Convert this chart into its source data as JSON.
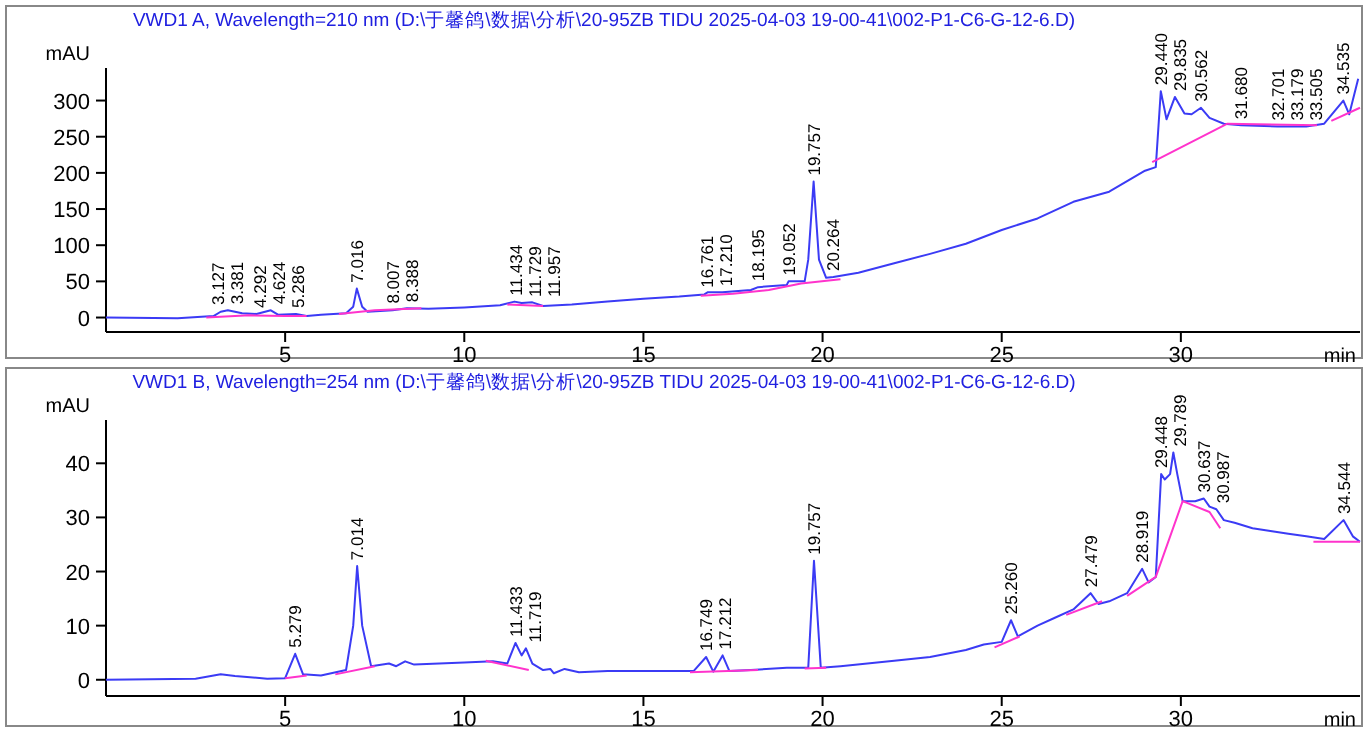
{
  "chart_data": [
    {
      "type": "line",
      "title": "VWD1 A, Wavelength=210 nm (D:\\于馨鸽\\数据\\分析\\20-95ZB TIDU 2025-04-03 19-00-41\\002-P1-C6-G-12-6.D)",
      "ylabel": "mAU",
      "xlabel": "min",
      "xlim": [
        0,
        35
      ],
      "ylim": [
        -20,
        345
      ],
      "xticks": [
        5,
        10,
        15,
        20,
        25,
        30
      ],
      "yticks": [
        0,
        50,
        100,
        150,
        200,
        250,
        300
      ],
      "grid": false,
      "series": [
        {
          "color": "#3b3bf5",
          "x": [
            0,
            2,
            3.0,
            3.2,
            3.4,
            3.8,
            4.2,
            4.6,
            4.8,
            5.3,
            5.6,
            6,
            6.7,
            6.9,
            7.0,
            7.15,
            7.3,
            8,
            8.4,
            9,
            10,
            11,
            11.4,
            11.6,
            11.9,
            12.2,
            13,
            14,
            15,
            16,
            16.7,
            16.8,
            17.2,
            18,
            18.2,
            19,
            19.05,
            19.5,
            19.6,
            19.75,
            19.9,
            20.1,
            20.3,
            21,
            22,
            23,
            24,
            25,
            26,
            27,
            28,
            29,
            29.3,
            29.44,
            29.6,
            29.835,
            30.1,
            30.3,
            30.562,
            30.8,
            31.2,
            31.68,
            32.7,
            33.5,
            34.0,
            34.535,
            34.7,
            34.95
          ],
          "values": [
            0,
            -1,
            2,
            8,
            10,
            6,
            5,
            10,
            4,
            5,
            2,
            4,
            6,
            15,
            40,
            15,
            8,
            10,
            13,
            12,
            14,
            17,
            22,
            20,
            21,
            16,
            18,
            22,
            26,
            29,
            32,
            35,
            35,
            38,
            42,
            45,
            50,
            50,
            80,
            188,
            80,
            55,
            56,
            62,
            75,
            88,
            102,
            121,
            137,
            160,
            174,
            203,
            208,
            313,
            274,
            305,
            282,
            281,
            290,
            276,
            268,
            266,
            264,
            264,
            268,
            300,
            281,
            330
          ]
        },
        {
          "color": "#ff33cc",
          "x": [
            2.8,
            4.0,
            5.0,
            5.6
          ],
          "values": [
            0,
            3,
            2,
            2
          ]
        },
        {
          "color": "#ff33cc",
          "x": [
            6.5,
            7.5,
            8.8
          ],
          "values": [
            5,
            10,
            13
          ]
        },
        {
          "color": "#ff33cc",
          "x": [
            11.2,
            12.2
          ],
          "values": [
            18,
            16
          ]
        },
        {
          "color": "#ff33cc",
          "x": [
            16.6,
            17.5,
            18.5,
            19.4,
            20.5
          ],
          "values": [
            30,
            33,
            38,
            47,
            53
          ]
        },
        {
          "color": "#ff33cc",
          "x": [
            29.2,
            31.3,
            33.8
          ],
          "values": [
            215,
            268,
            266
          ]
        },
        {
          "color": "#ff33cc",
          "x": [
            34.2,
            35
          ],
          "values": [
            272,
            290
          ]
        }
      ],
      "annotations": [
        {
          "text": "3.127",
          "x": 3.127,
          "y": 9
        },
        {
          "text": "3.381",
          "x": 3.381,
          "y": 10
        },
        {
          "text": "4.292",
          "x": 4.292,
          "y": 5
        },
        {
          "text": "4.624",
          "x": 4.624,
          "y": 10
        },
        {
          "text": "5.286",
          "x": 5.286,
          "y": 5
        },
        {
          "text": "7.016",
          "x": 7.016,
          "y": 40
        },
        {
          "text": "8.007",
          "x": 8.007,
          "y": 11
        },
        {
          "text": "8.388",
          "x": 8.388,
          "y": 13
        },
        {
          "text": "11.434",
          "x": 11.434,
          "y": 22
        },
        {
          "text": "11.729",
          "x": 11.729,
          "y": 20
        },
        {
          "text": "11.957",
          "x": 11.957,
          "y": 20
        },
        {
          "text": "16.761",
          "x": 16.761,
          "y": 33
        },
        {
          "text": "17.210",
          "x": 17.21,
          "y": 35
        },
        {
          "text": "18.195",
          "x": 18.195,
          "y": 42
        },
        {
          "text": "19.052",
          "x": 19.052,
          "y": 50
        },
        {
          "text": "19.757",
          "x": 19.757,
          "y": 188
        },
        {
          "text": "20.264",
          "x": 20.264,
          "y": 56
        },
        {
          "text": "29.440",
          "x": 29.44,
          "y": 313
        },
        {
          "text": "29.835",
          "x": 29.835,
          "y": 305
        },
        {
          "text": "30.562",
          "x": 30.562,
          "y": 290
        },
        {
          "text": "31.680",
          "x": 31.68,
          "y": 266
        },
        {
          "text": "32.701",
          "x": 32.701,
          "y": 264
        },
        {
          "text": "33.179",
          "x": 33.179,
          "y": 264
        },
        {
          "text": "33.505",
          "x": 33.505,
          "y": 264
        },
        {
          "text": "34.535",
          "x": 34.535,
          "y": 300
        }
      ]
    },
    {
      "type": "line",
      "title": "VWD1 B, Wavelength=254 nm (D:\\于馨鸽\\数据\\分析\\20-95ZB TIDU 2025-04-03 19-00-41\\002-P1-C6-G-12-6.D)",
      "ylabel": "mAU",
      "xlabel": "min",
      "xlim": [
        0,
        35
      ],
      "ylim": [
        -3,
        48
      ],
      "xticks": [
        5,
        10,
        15,
        20,
        25,
        30
      ],
      "yticks": [
        0,
        10,
        20,
        30,
        40
      ],
      "grid": false,
      "series": [
        {
          "color": "#3b3bf5",
          "x": [
            0,
            2.5,
            3.2,
            3.6,
            4.5,
            5.0,
            5.28,
            5.5,
            6,
            6.7,
            6.9,
            7.01,
            7.15,
            7.4,
            7.9,
            8.1,
            8.35,
            8.6,
            10,
            10.8,
            11.2,
            11.43,
            11.6,
            11.72,
            11.9,
            12.2,
            12.4,
            12.5,
            12.8,
            13.2,
            14,
            15,
            16.4,
            16.75,
            16.95,
            17.21,
            17.4,
            18,
            19,
            19.6,
            19.76,
            19.95,
            20.5,
            22,
            23,
            24,
            24.5,
            25,
            25.26,
            25.45,
            26,
            26.5,
            27,
            27.48,
            27.7,
            28,
            28.5,
            28.92,
            29.1,
            29.3,
            29.45,
            29.55,
            29.7,
            29.79,
            29.9,
            30.05,
            30.4,
            30.64,
            30.8,
            30.99,
            31.2,
            31.5,
            32,
            32.5,
            33,
            33.5,
            34,
            34.54,
            34.8,
            35
          ],
          "values": [
            0,
            0.2,
            1,
            0.7,
            0.2,
            0.3,
            4.8,
            1,
            0.8,
            1.8,
            10,
            21,
            10,
            2.5,
            3,
            2.5,
            3.4,
            2.8,
            3.2,
            3.4,
            3,
            6.8,
            4.5,
            5.8,
            3,
            1.8,
            2,
            1.2,
            2,
            1.4,
            1.6,
            1.6,
            1.6,
            4.2,
            1.5,
            4.5,
            1.6,
            1.8,
            2.2,
            2.2,
            22,
            2.2,
            2.5,
            3.5,
            4.2,
            5.5,
            6.5,
            7,
            11,
            8,
            10,
            11.5,
            13,
            16,
            14,
            14.5,
            16,
            20.5,
            18,
            19,
            38,
            37,
            38,
            42,
            38,
            33,
            33,
            33.5,
            32,
            31.5,
            29.5,
            29,
            28,
            27.5,
            27,
            26.5,
            26,
            29.5,
            26.5,
            25.5
          ]
        },
        {
          "color": "#ff33cc",
          "x": [
            5.0,
            5.6
          ],
          "values": [
            0.3,
            0.8
          ]
        },
        {
          "color": "#ff33cc",
          "x": [
            6.4,
            7.5
          ],
          "values": [
            1,
            2.5
          ]
        },
        {
          "color": "#ff33cc",
          "x": [
            10.6,
            11.8
          ],
          "values": [
            3.5,
            1.8
          ]
        },
        {
          "color": "#ff33cc",
          "x": [
            16.3,
            18.2
          ],
          "values": [
            1.4,
            1.8
          ]
        },
        {
          "color": "#ff33cc",
          "x": [
            19.5,
            20.1
          ],
          "values": [
            2.1,
            2.2
          ]
        },
        {
          "color": "#ff33cc",
          "x": [
            24.8,
            25.5
          ],
          "values": [
            6,
            8
          ]
        },
        {
          "color": "#ff33cc",
          "x": [
            26.8,
            27.8
          ],
          "values": [
            12,
            14.5
          ]
        },
        {
          "color": "#ff33cc",
          "x": [
            28.5,
            29.3,
            30.05,
            30.8,
            31.1
          ],
          "values": [
            15.5,
            19,
            33,
            31,
            28
          ]
        },
        {
          "color": "#ff33cc",
          "x": [
            33.7,
            35
          ],
          "values": [
            25.5,
            25.5
          ]
        }
      ],
      "annotations": [
        {
          "text": "5.279",
          "x": 5.279,
          "y": 4.8
        },
        {
          "text": "7.014",
          "x": 7.014,
          "y": 21
        },
        {
          "text": "11.433",
          "x": 11.433,
          "y": 6.8
        },
        {
          "text": "11.719",
          "x": 11.719,
          "y": 5.8
        },
        {
          "text": "16.749",
          "x": 16.749,
          "y": 4.2
        },
        {
          "text": "17.212",
          "x": 17.212,
          "y": 4.5
        },
        {
          "text": "19.757",
          "x": 19.757,
          "y": 22
        },
        {
          "text": "25.260",
          "x": 25.26,
          "y": 11
        },
        {
          "text": "27.479",
          "x": 27.479,
          "y": 16
        },
        {
          "text": "28.919",
          "x": 28.919,
          "y": 20.5
        },
        {
          "text": "29.448",
          "x": 29.448,
          "y": 38
        },
        {
          "text": "29.789",
          "x": 29.789,
          "y": 42
        },
        {
          "text": "30.637",
          "x": 30.637,
          "y": 33.5
        },
        {
          "text": "30.987",
          "x": 30.987,
          "y": 31.5
        },
        {
          "text": "34.544",
          "x": 34.544,
          "y": 29.5
        }
      ]
    }
  ]
}
